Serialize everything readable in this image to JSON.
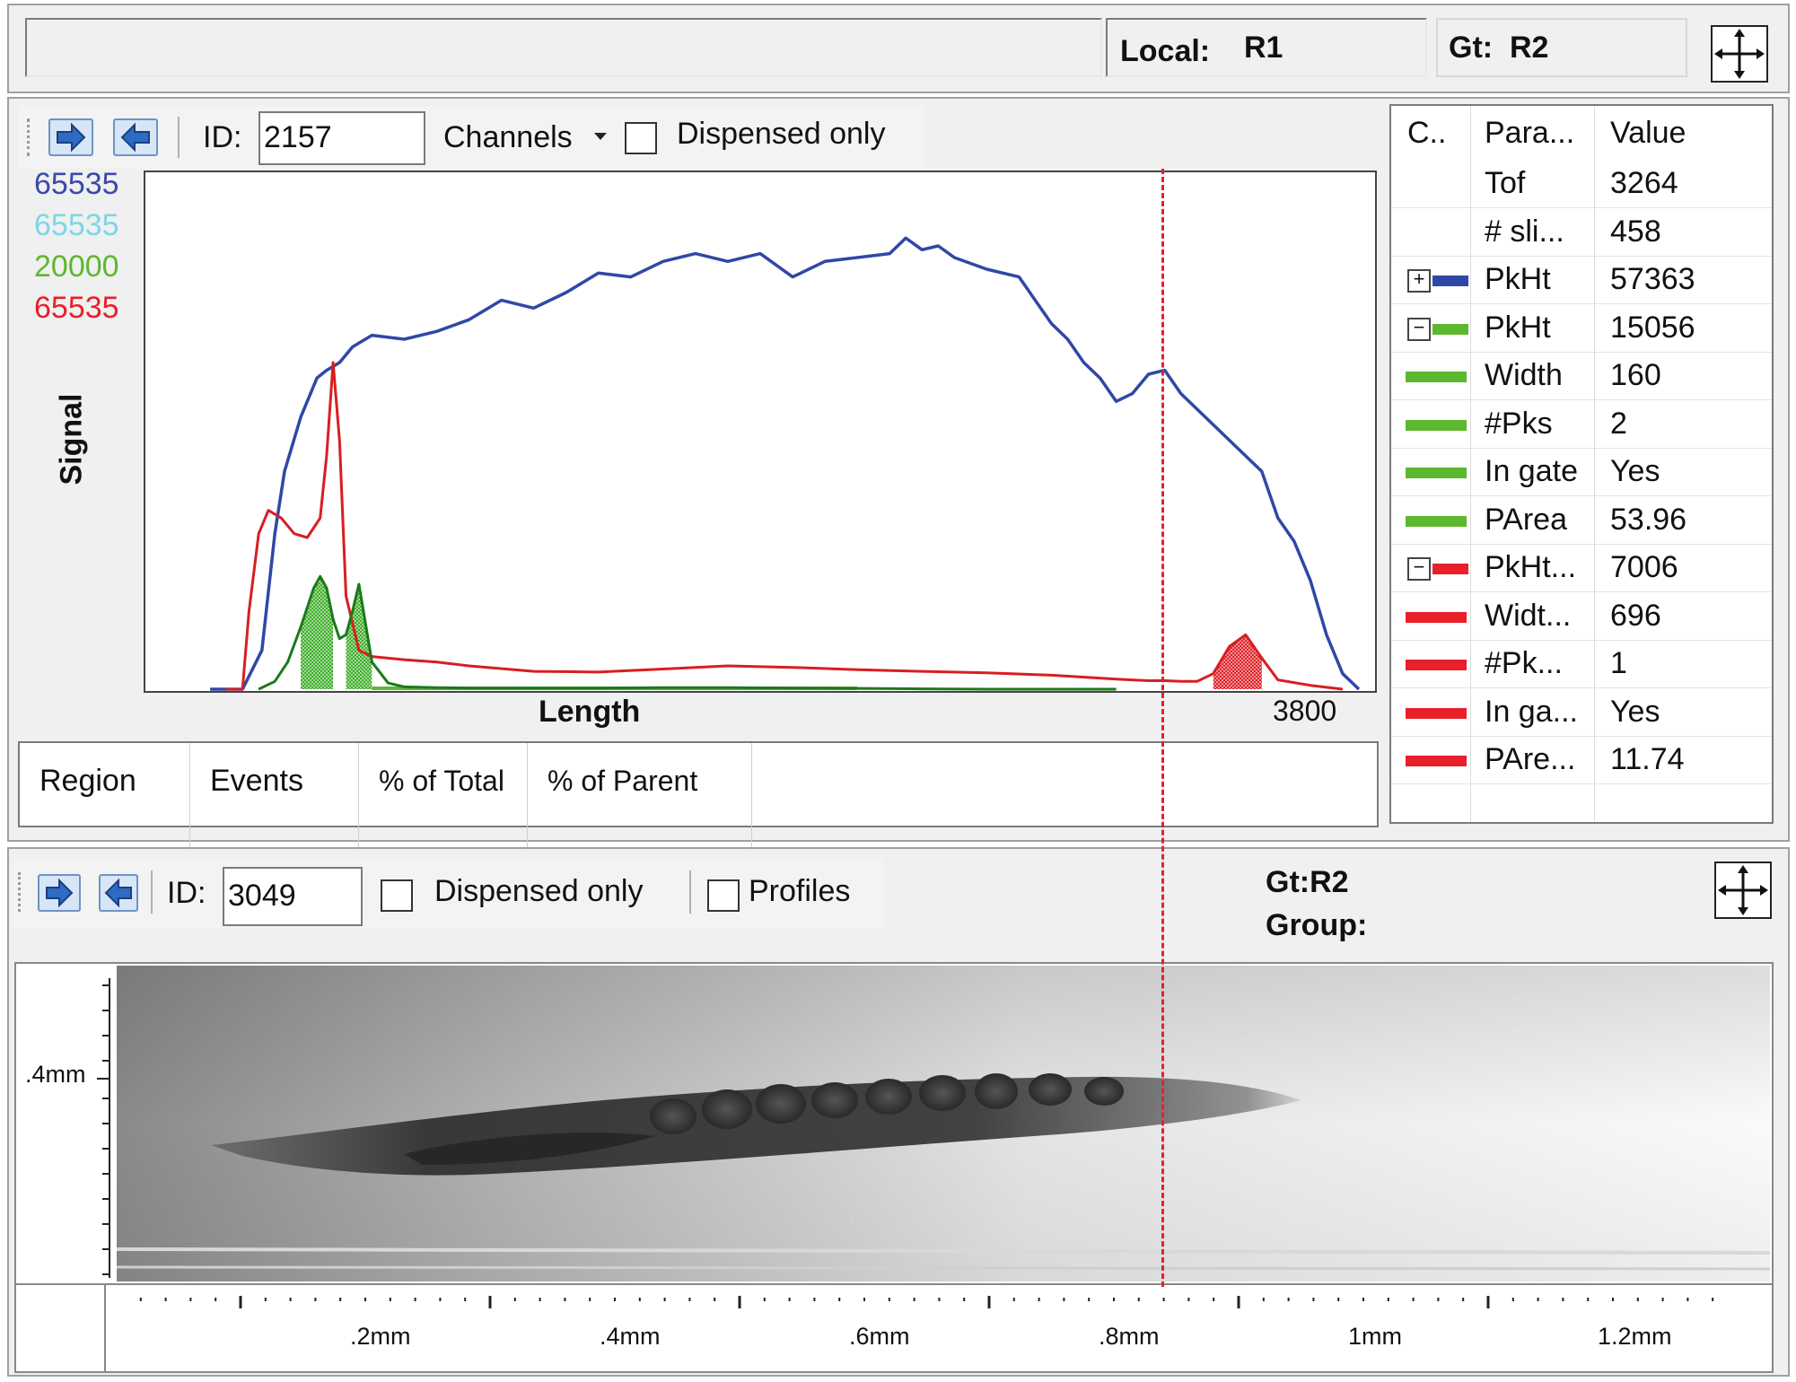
{
  "status_bar": {
    "local_label": "Local:",
    "local_value": "R1",
    "gate_label": "Gt:",
    "gate_value": "R2"
  },
  "signal_panel": {
    "id_label": "ID:",
    "id_value": "2157",
    "channels_label": "Channels",
    "dispensed_only_label": "Dispensed only",
    "dispensed_only_checked": false,
    "channel_maxima": [
      {
        "value": "65535",
        "color": "#3b4aa8"
      },
      {
        "value": "65535",
        "color": "#7ed6e6"
      },
      {
        "value": "20000",
        "color": "#5cb82e"
      },
      {
        "value": "65535",
        "color": "#e8202a"
      }
    ],
    "ylabel": "Signal",
    "xlabel": "Length",
    "x_max_label": "3800",
    "region_table": {
      "columns": [
        "Region",
        "Events",
        "% of Total",
        "% of Parent"
      ]
    }
  },
  "chart_data": {
    "type": "line",
    "xlabel": "Length",
    "ylabel": "Signal",
    "x_range": [
      0,
      3800
    ],
    "y_range": [
      0,
      65535
    ],
    "cursor_x": 3150,
    "series": [
      {
        "color": "#2f48a6",
        "x": [
          200,
          300,
          360,
          400,
          430,
          480,
          530,
          560,
          600,
          640,
          700,
          800,
          900,
          1000,
          1100,
          1200,
          1300,
          1400,
          1500,
          1600,
          1700,
          1800,
          1900,
          2000,
          2100,
          2200,
          2300,
          2350,
          2400,
          2450,
          2500,
          2600,
          2700,
          2750,
          2800,
          2850,
          2900,
          2950,
          3000,
          3050,
          3100,
          3150,
          3200,
          3300,
          3400,
          3450,
          3500,
          3550,
          3600,
          3650,
          3700,
          3750
        ],
        "y": [
          0,
          0,
          5000,
          20000,
          28000,
          35000,
          40000,
          41000,
          42000,
          44000,
          45500,
          45000,
          46000,
          47500,
          50000,
          49000,
          51000,
          53500,
          53000,
          55000,
          56000,
          55000,
          56000,
          53000,
          55000,
          55500,
          56000,
          58000,
          56500,
          57000,
          55500,
          54000,
          53000,
          50000,
          47000,
          45000,
          42000,
          40000,
          37000,
          38000,
          40500,
          41000,
          38000,
          34000,
          30000,
          28000,
          22000,
          19000,
          14000,
          7000,
          2000,
          0
        ]
      },
      {
        "color": "#d81e22",
        "x": [
          250,
          300,
          320,
          350,
          380,
          420,
          460,
          500,
          540,
          560,
          580,
          600,
          620,
          660,
          700,
          800,
          900,
          1000,
          1200,
          1400,
          1600,
          1800,
          2000,
          2200,
          2400,
          2600,
          2800,
          3000,
          3100,
          3150,
          3200,
          3250,
          3300,
          3350,
          3400,
          3450,
          3500,
          3600,
          3700
        ],
        "y": [
          0,
          0,
          10000,
          20000,
          23000,
          22000,
          20000,
          19500,
          22000,
          30000,
          42000,
          32000,
          12000,
          5000,
          4200,
          3800,
          3500,
          3000,
          2300,
          2200,
          2600,
          3000,
          2800,
          2500,
          2300,
          2100,
          1800,
          1300,
          1100,
          1100,
          1000,
          1000,
          2000,
          5500,
          7006,
          4000,
          1200,
          500,
          0
        ],
        "fill_ranges": [
          [
            3300,
            3450
          ]
        ]
      },
      {
        "color": "#1b7a1b",
        "x": [
          350,
          400,
          440,
          480,
          520,
          540,
          560,
          580,
          600,
          620,
          640,
          660,
          700,
          750,
          800,
          900,
          1000,
          1200,
          1400,
          1600,
          1800,
          2000,
          2200,
          2400,
          2600,
          2800,
          3000
        ],
        "y": [
          0,
          1000,
          3500,
          8000,
          13000,
          14500,
          13000,
          9000,
          6500,
          7000,
          10000,
          13500,
          3500,
          800,
          300,
          200,
          150,
          150,
          150,
          200,
          200,
          150,
          100,
          50,
          0,
          0,
          0
        ],
        "fill_ranges": [
          [
            480,
            580
          ],
          [
            620,
            700
          ]
        ]
      }
    ]
  },
  "param_table": {
    "headers": [
      "C..",
      "Para...",
      "Value"
    ],
    "rows": [
      {
        "tree": "",
        "swatch": "",
        "param": "Tof",
        "value": "3264"
      },
      {
        "tree": "",
        "swatch": "",
        "param": "# sli...",
        "value": "458"
      },
      {
        "tree": "+",
        "swatch": "#2f48a6",
        "param": "PkHt",
        "value": "57363"
      },
      {
        "tree": "−",
        "swatch": "#5cb82e",
        "param": "PkHt",
        "value": "15056"
      },
      {
        "tree": "",
        "swatch": "#5cb82e",
        "param": "Width",
        "value": "160"
      },
      {
        "tree": "",
        "swatch": "#5cb82e",
        "param": "#Pks",
        "value": "2"
      },
      {
        "tree": "",
        "swatch": "#5cb82e",
        "param": "In gate",
        "value": "Yes"
      },
      {
        "tree": "",
        "swatch": "#5cb82e",
        "param": "PArea",
        "value": "53.96"
      },
      {
        "tree": "−",
        "swatch": "#e8202a",
        "param": "PkHt...",
        "value": "7006"
      },
      {
        "tree": "",
        "swatch": "#e8202a",
        "param": "Widt...",
        "value": "696"
      },
      {
        "tree": "",
        "swatch": "#e8202a",
        "param": "#Pk...",
        "value": "1"
      },
      {
        "tree": "",
        "swatch": "#e8202a",
        "param": "In ga...",
        "value": "Yes"
      },
      {
        "tree": "",
        "swatch": "#e8202a",
        "param": "PAre...",
        "value": "11.74"
      }
    ]
  },
  "image_panel": {
    "id_label": "ID:",
    "id_value": "3049",
    "dispensed_only_label": "Dispensed only",
    "dispensed_only_checked": false,
    "profiles_label": "Profiles",
    "profiles_checked": false,
    "gate_text": "Gt:R2",
    "group_text": "Group:",
    "y_tick_label": ".4mm",
    "x_tick_labels": [
      ".2mm",
      ".4mm",
      ".6mm",
      ".8mm",
      "1mm",
      "1.2mm"
    ]
  }
}
